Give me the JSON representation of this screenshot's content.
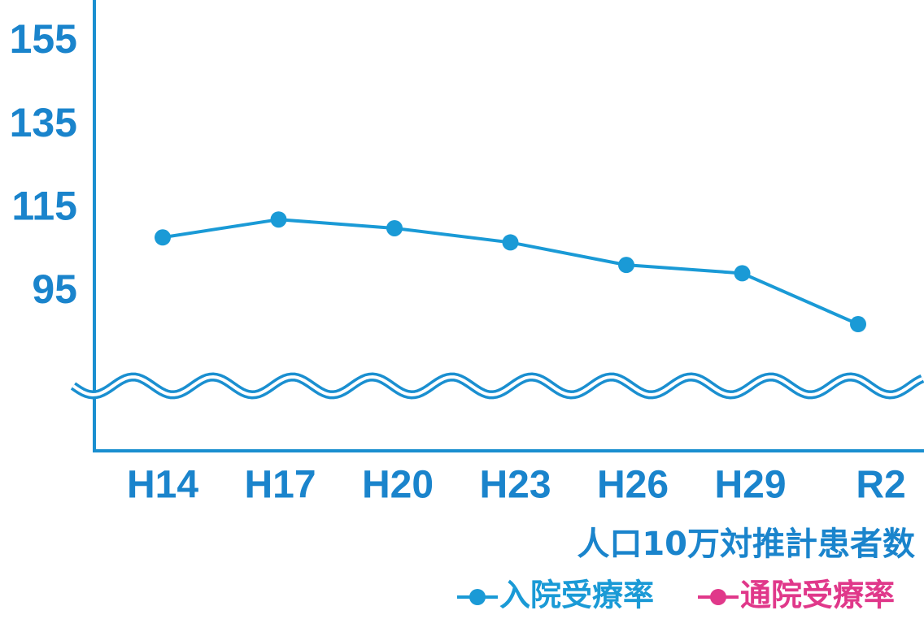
{
  "chart_data": {
    "type": "line",
    "y_label": "人口10万対推計患者数",
    "categories": [
      "H14",
      "H17",
      "H20",
      "H23",
      "H26",
      "H29",
      "R2"
    ],
    "series": [
      {
        "name": "入院受療率",
        "color": "#1a9ad6",
        "values": [
          108.2,
          112.5,
          110.4,
          107,
          101.6,
          99.6,
          87.4
        ]
      },
      {
        "name": "通院受療率",
        "color": "#e0388a",
        "values": [
          null,
          null,
          null,
          null,
          null,
          null,
          null
        ]
      }
    ],
    "ylim": [
      75,
      165
    ],
    "yticks": [
      95,
      115,
      135,
      155
    ],
    "axis_break": true
  }
}
